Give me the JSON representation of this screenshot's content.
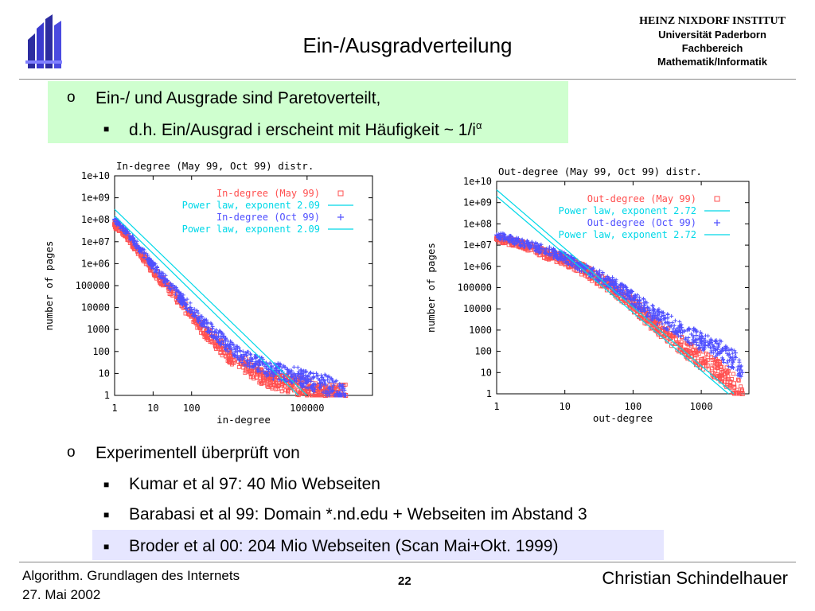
{
  "header": {
    "title": "Ein-/Ausgradverteilung",
    "institute": [
      "HEINZ NIXDORF INSTITUT",
      "Universität Paderborn",
      "Fachbereich",
      "Mathematik/Informatik"
    ]
  },
  "bullets_top": {
    "b1": "Ein-/ und Ausgrade sind Paretoverteilt,",
    "b2": "d.h. Ein/Ausgrad i erscheint mit Häufigkeit ~ 1/i",
    "b2_sup": "α"
  },
  "bullets_bottom": {
    "b1": "Experimentell überprüft von",
    "b2": "Kumar et al 97:  40 Mio Webseiten",
    "b3": "Barabasi et al 99: Domain *.nd.edu + Webseiten im Abstand 3",
    "b4": "Broder et al 00: 204 Mio Webseiten (Scan Mai+Okt. 1999)"
  },
  "footer": {
    "course": "Algorithm. Grundlagen des Internets",
    "date": "27. Mai 2002",
    "page": "22",
    "author": "Christian Schindelhauer"
  },
  "colors": {
    "green_box": "#cfffcf",
    "lavender_box": "#e6e6ff",
    "series_may": "#ff5050",
    "series_oct": "#5050ff",
    "power_law": "#00d8e8"
  },
  "chart_data": [
    {
      "type": "scatter",
      "title": "In-degree (May 99, Oct 99) distr.",
      "xlabel": "in-degree",
      "ylabel": "number of pages",
      "x_scale": "log",
      "y_scale": "log",
      "xlim": [
        1,
        5000000
      ],
      "ylim": [
        1,
        10000000000.0
      ],
      "xticks": [
        "1",
        "10",
        "100",
        "100000"
      ],
      "yticks": [
        "1",
        "10",
        "100",
        "1000",
        "10000",
        "100000",
        "1e+06",
        "1e+07",
        "1e+08",
        "1e+09",
        "1e+10"
      ],
      "legend": [
        "In-degree (May 99)",
        "Power law, exponent 2.09",
        "In-degree (Oct 99)",
        "Power law, exponent 2.09"
      ],
      "legend_placement": "top-right",
      "series": [
        {
          "name": "In-degree (May 99)",
          "marker": "square",
          "points": [
            [
              1,
              60000000.0
            ],
            [
              2,
              20000000.0
            ],
            [
              3,
              8000000.0
            ],
            [
              5,
              2500000.0
            ],
            [
              10,
              500000.0
            ],
            [
              20,
              120000.0
            ],
            [
              50,
              20000.0
            ],
            [
              100,
              4000.0
            ],
            [
              200,
              1000.0
            ],
            [
              500,
              200
            ],
            [
              1000,
              60
            ],
            [
              2000,
              30
            ],
            [
              5000,
              10
            ],
            [
              10000,
              5
            ],
            [
              50000,
              3
            ],
            [
              100000,
              2
            ],
            [
              300000,
              1
            ],
            [
              1000000,
              1
            ]
          ]
        },
        {
          "name": "In-degree (Oct 99)",
          "marker": "plus",
          "points": [
            [
              1,
              100000000.0
            ],
            [
              2,
              30000000.0
            ],
            [
              3,
              12000000.0
            ],
            [
              5,
              4000000.0
            ],
            [
              10,
              800000.0
            ],
            [
              20,
              200000.0
            ],
            [
              50,
              30000.0
            ],
            [
              100,
              8000.0
            ],
            [
              200,
              2000.0
            ],
            [
              500,
              500
            ],
            [
              1000,
              150
            ],
            [
              2000,
              60
            ],
            [
              5000,
              30
            ],
            [
              10000,
              15
            ],
            [
              50000,
              8
            ],
            [
              100000,
              5
            ],
            [
              300000,
              3
            ],
            [
              1000000,
              1
            ]
          ]
        },
        {
          "name": "Power law, exponent 2.09",
          "line": [
            [
              1,
              300000000.0
            ],
            [
              100000,
              1
            ]
          ]
        },
        {
          "name": "Power law, exponent 2.09",
          "line": [
            [
              1,
              150000000.0
            ],
            [
              60000,
              1
            ]
          ]
        }
      ]
    },
    {
      "type": "scatter",
      "title": "Out-degree (May 99, Oct 99) distr.",
      "xlabel": "out-degree",
      "ylabel": "number of pages",
      "x_scale": "log",
      "y_scale": "log",
      "xlim": [
        1,
        5000
      ],
      "ylim": [
        1,
        10000000000.0
      ],
      "xticks": [
        "1",
        "10",
        "100",
        "1000"
      ],
      "yticks": [
        "1",
        "10",
        "100",
        "1000",
        "10000",
        "100000",
        "1e+06",
        "1e+07",
        "1e+08",
        "1e+09",
        "1e+10"
      ],
      "legend": [
        "Out-degree (May 99)",
        "Power law, exponent 2.72",
        "Out-degree (Oct 99)",
        "Power law, exponent 2.72"
      ],
      "legend_placement": "top-right",
      "series": [
        {
          "name": "Out-degree (May 99)",
          "marker": "square",
          "points": [
            [
              1,
              20000000.0
            ],
            [
              2,
              12000000.0
            ],
            [
              3,
              8000000.0
            ],
            [
              5,
              4000000.0
            ],
            [
              10,
              2000000.0
            ],
            [
              20,
              600000.0
            ],
            [
              50,
              100000.0
            ],
            [
              100,
              15000.0
            ],
            [
              200,
              2000.0
            ],
            [
              500,
              200
            ],
            [
              1000,
              40
            ],
            [
              2000,
              10
            ],
            [
              3000,
              3
            ],
            [
              4000,
              1
            ]
          ]
        },
        {
          "name": "Out-degree (Oct 99)",
          "marker": "plus",
          "points": [
            [
              1,
              30000000.0
            ],
            [
              2,
              15000000.0
            ],
            [
              3,
              10000000.0
            ],
            [
              5,
              6000000.0
            ],
            [
              10,
              2500000.0
            ],
            [
              20,
              800000.0
            ],
            [
              50,
              150000.0
            ],
            [
              100,
              30000.0
            ],
            [
              200,
              6000.0
            ],
            [
              500,
              1000.0
            ],
            [
              1000,
              300
            ],
            [
              2000,
              100
            ],
            [
              3000,
              40
            ],
            [
              4000,
              10
            ]
          ]
        },
        {
          "name": "Power law, exponent 2.72",
          "line": [
            [
              1,
              4000000000.0
            ],
            [
              3000,
              1
            ]
          ]
        },
        {
          "name": "Power law, exponent 2.72",
          "line": [
            [
              1,
              2000000000.0
            ],
            [
              2500,
              1
            ]
          ]
        }
      ]
    }
  ]
}
